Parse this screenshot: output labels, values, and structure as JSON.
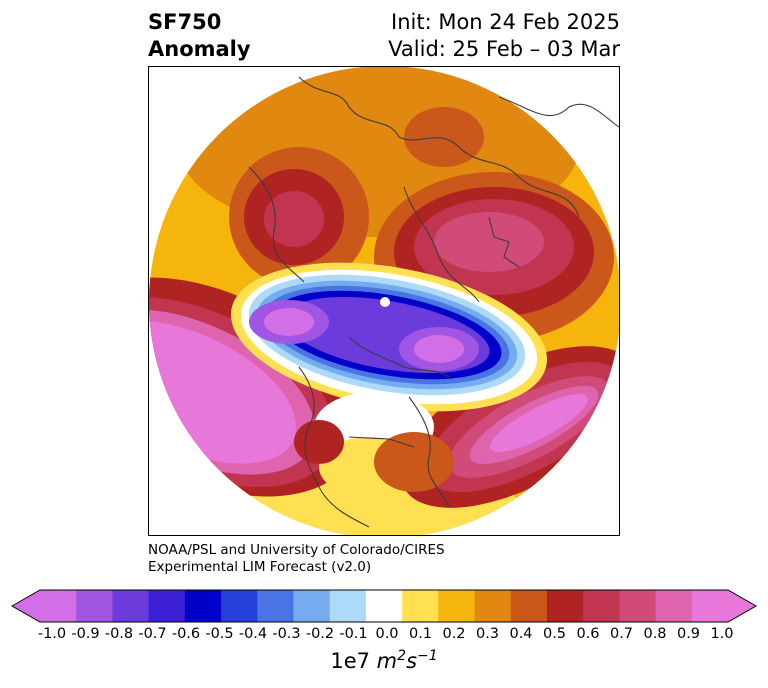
{
  "title": {
    "left_line1": "SF750",
    "left_line2": "Anomaly",
    "right_line1": "Init: Mon 24 Feb 2025",
    "right_line2": "Valid: 25 Feb – 03 Mar"
  },
  "credit": {
    "line1": "NOAA/PSL and University of Colorado/CIRES",
    "line2": "Experimental LIM Forecast (v2.0)"
  },
  "colorbar": {
    "ticks": [
      "-1.0",
      "-0.9",
      "-0.8",
      "-0.7",
      "-0.6",
      "-0.5",
      "-0.4",
      "-0.3",
      "-0.2",
      "-0.1",
      "0.0",
      "0.1",
      "0.2",
      "0.3",
      "0.4",
      "0.5",
      "0.6",
      "0.7",
      "0.8",
      "0.9",
      "1.0"
    ],
    "colors": [
      "#d36fe6",
      "#a055e3",
      "#6b3bdc",
      "#3b20d6",
      "#0000c8",
      "#2440d8",
      "#4a74e4",
      "#75acf0",
      "#aedaf9",
      "#ffffff",
      "#fee050",
      "#f5b50d",
      "#e0880f",
      "#c9581a",
      "#b02323",
      "#c13550",
      "#d04b78",
      "#de64b0",
      "#e877da"
    ],
    "units_prefix": "1e7",
    "units_m": "m",
    "units_m_exp": "2",
    "units_s": "s",
    "units_s_exp": "−1"
  }
}
